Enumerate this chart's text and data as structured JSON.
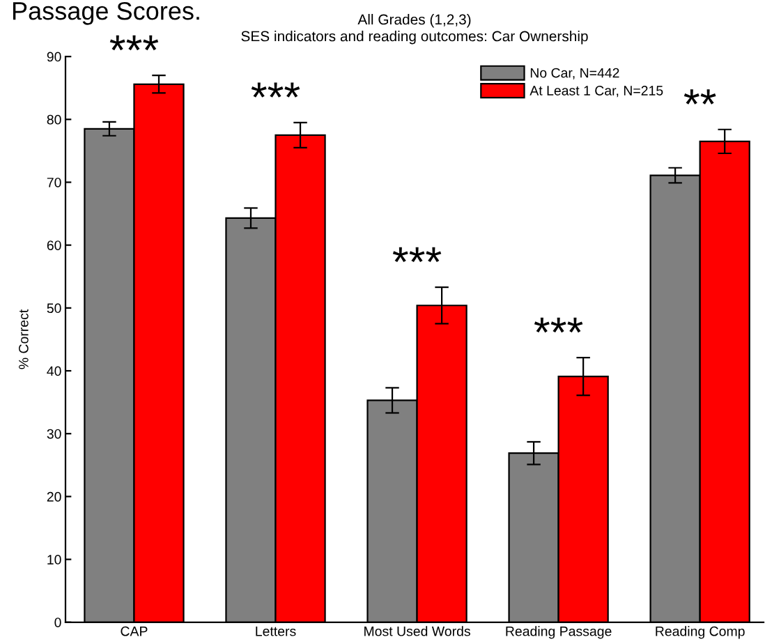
{
  "chart_data": {
    "type": "bar",
    "title": "All Grades (1,2,3)",
    "subtitle": "SES indicators and reading outcomes: Car Ownership",
    "ylabel": "% Correct",
    "categories": [
      "CAP",
      "Letters",
      "Most Used Words",
      "Reading Passage",
      "Reading Comp"
    ],
    "series": [
      {
        "name": "No Car, N=442",
        "color": "#808080",
        "values": [
          78.5,
          64.3,
          35.3,
          26.9,
          71.1
        ],
        "errors": [
          1.1,
          1.6,
          2.0,
          1.8,
          1.2
        ]
      },
      {
        "name": "At Least 1 Car, N=215",
        "color": "#ff0000",
        "values": [
          85.6,
          77.5,
          50.4,
          39.1,
          76.5
        ],
        "errors": [
          1.4,
          2.0,
          2.9,
          3.0,
          1.9
        ]
      }
    ],
    "ylim": [
      0,
      90
    ],
    "yticks": [
      0,
      10,
      20,
      30,
      40,
      50,
      60,
      70,
      80,
      90
    ],
    "legend": "top right",
    "annotations": [
      "Passage Scores.",
      "***",
      "***",
      "***",
      "***",
      "**"
    ]
  }
}
